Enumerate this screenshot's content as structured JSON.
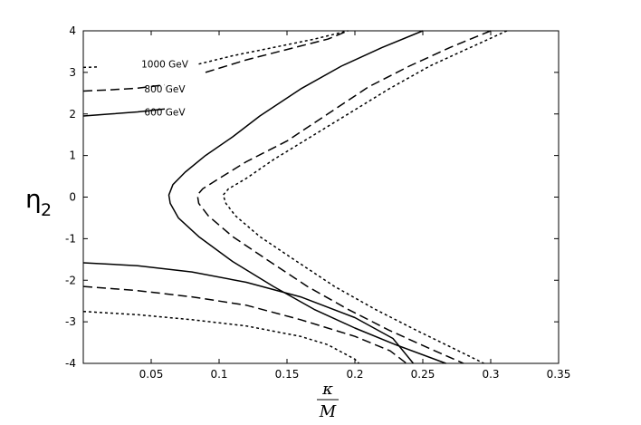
{
  "chart_data": {
    "type": "line",
    "title": "",
    "xlabel": {
      "numerator": "κ",
      "denominator": "M"
    },
    "ylabel": {
      "base": "η",
      "subscript": "2"
    },
    "xlim": [
      0,
      0.35
    ],
    "ylim": [
      -4,
      4
    ],
    "x_ticks": [
      "0.05",
      "0.1",
      "0.15",
      "0.2",
      "0.25",
      "0.3",
      "0.35"
    ],
    "y_ticks": [
      "-4",
      "-3",
      "-2",
      "-1",
      "0",
      "1",
      "2",
      "3",
      "4"
    ],
    "grid": false,
    "series": [
      {
        "name": "600 GeV",
        "style": "solid",
        "segments": [
          [
            [
              0.0,
              1.95
            ],
            [
              0.02,
              2.0
            ],
            [
              0.04,
              2.05
            ],
            [
              0.06,
              2.12
            ]
          ],
          [
            [
              0.25,
              4.0
            ],
            [
              0.22,
              3.6
            ],
            [
              0.19,
              3.15
            ],
            [
              0.16,
              2.6
            ],
            [
              0.13,
              1.95
            ],
            [
              0.11,
              1.45
            ],
            [
              0.09,
              1.0
            ],
            [
              0.075,
              0.6
            ],
            [
              0.066,
              0.3
            ],
            [
              0.063,
              0.05
            ],
            [
              0.064,
              -0.15
            ],
            [
              0.07,
              -0.5
            ],
            [
              0.085,
              -0.95
            ],
            [
              0.11,
              -1.55
            ],
            [
              0.14,
              -2.15
            ],
            [
              0.17,
              -2.7
            ],
            [
              0.2,
              -3.15
            ],
            [
              0.23,
              -3.55
            ],
            [
              0.267,
              -4.0
            ]
          ],
          [
            [
              0.0,
              -1.58
            ],
            [
              0.04,
              -1.65
            ],
            [
              0.08,
              -1.8
            ],
            [
              0.12,
              -2.05
            ],
            [
              0.16,
              -2.4
            ],
            [
              0.2,
              -2.9
            ],
            [
              0.228,
              -3.4
            ],
            [
              0.243,
              -4.0
            ]
          ]
        ]
      },
      {
        "name": "800 GeV",
        "style": "dashed",
        "segments": [
          [
            [
              0.0,
              2.55
            ],
            [
              0.02,
              2.58
            ],
            [
              0.04,
              2.62
            ],
            [
              0.06,
              2.7
            ]
          ],
          [
            [
              0.09,
              3.0
            ],
            [
              0.12,
              3.3
            ],
            [
              0.15,
              3.55
            ],
            [
              0.18,
              3.8
            ],
            [
              0.195,
              4.0
            ]
          ],
          [
            [
              0.3,
              4.0
            ],
            [
              0.27,
              3.6
            ],
            [
              0.24,
              3.15
            ],
            [
              0.21,
              2.65
            ],
            [
              0.18,
              2.0
            ],
            [
              0.15,
              1.35
            ],
            [
              0.12,
              0.85
            ],
            [
              0.1,
              0.45
            ],
            [
              0.088,
              0.2
            ],
            [
              0.084,
              0.05
            ],
            [
              0.085,
              -0.15
            ],
            [
              0.092,
              -0.45
            ],
            [
              0.11,
              -0.95
            ],
            [
              0.135,
              -1.5
            ],
            [
              0.165,
              -2.15
            ],
            [
              0.195,
              -2.7
            ],
            [
              0.225,
              -3.2
            ],
            [
              0.252,
              -3.6
            ],
            [
              0.28,
              -4.0
            ]
          ],
          [
            [
              0.0,
              -2.15
            ],
            [
              0.04,
              -2.25
            ],
            [
              0.08,
              -2.4
            ],
            [
              0.12,
              -2.6
            ],
            [
              0.16,
              -2.95
            ],
            [
              0.2,
              -3.35
            ],
            [
              0.226,
              -3.7
            ],
            [
              0.238,
              -4.0
            ]
          ]
        ]
      },
      {
        "name": "1000 GeV",
        "style": "dotted",
        "segments": [
          [
            [
              0.0,
              3.12
            ],
            [
              0.01,
              3.13
            ]
          ],
          [
            [
              0.085,
              3.2
            ],
            [
              0.11,
              3.4
            ],
            [
              0.14,
              3.6
            ],
            [
              0.17,
              3.8
            ],
            [
              0.195,
              4.0
            ]
          ],
          [
            [
              0.312,
              4.0
            ],
            [
              0.285,
              3.6
            ],
            [
              0.255,
              3.15
            ],
            [
              0.225,
              2.6
            ],
            [
              0.195,
              2.0
            ],
            [
              0.165,
              1.4
            ],
            [
              0.14,
              0.9
            ],
            [
              0.12,
              0.45
            ],
            [
              0.107,
              0.2
            ],
            [
              0.103,
              0.05
            ],
            [
              0.105,
              -0.15
            ],
            [
              0.112,
              -0.45
            ],
            [
              0.13,
              -0.95
            ],
            [
              0.155,
              -1.5
            ],
            [
              0.185,
              -2.15
            ],
            [
              0.215,
              -2.7
            ],
            [
              0.245,
              -3.2
            ],
            [
              0.27,
              -3.6
            ],
            [
              0.295,
              -4.0
            ]
          ],
          [
            [
              0.0,
              -2.75
            ],
            [
              0.04,
              -2.83
            ],
            [
              0.08,
              -2.95
            ],
            [
              0.12,
              -3.1
            ],
            [
              0.16,
              -3.35
            ],
            [
              0.18,
              -3.55
            ],
            [
              0.2,
              -3.9
            ],
            [
              0.203,
              -4.0
            ]
          ]
        ]
      }
    ],
    "annotations": [
      {
        "text": "1000 GeV",
        "x": 0.06,
        "y": 3.2
      },
      {
        "text": "800 GeV",
        "x": 0.06,
        "y": 2.6
      },
      {
        "text": "600 GeV",
        "x": 0.06,
        "y": 2.05
      }
    ]
  }
}
